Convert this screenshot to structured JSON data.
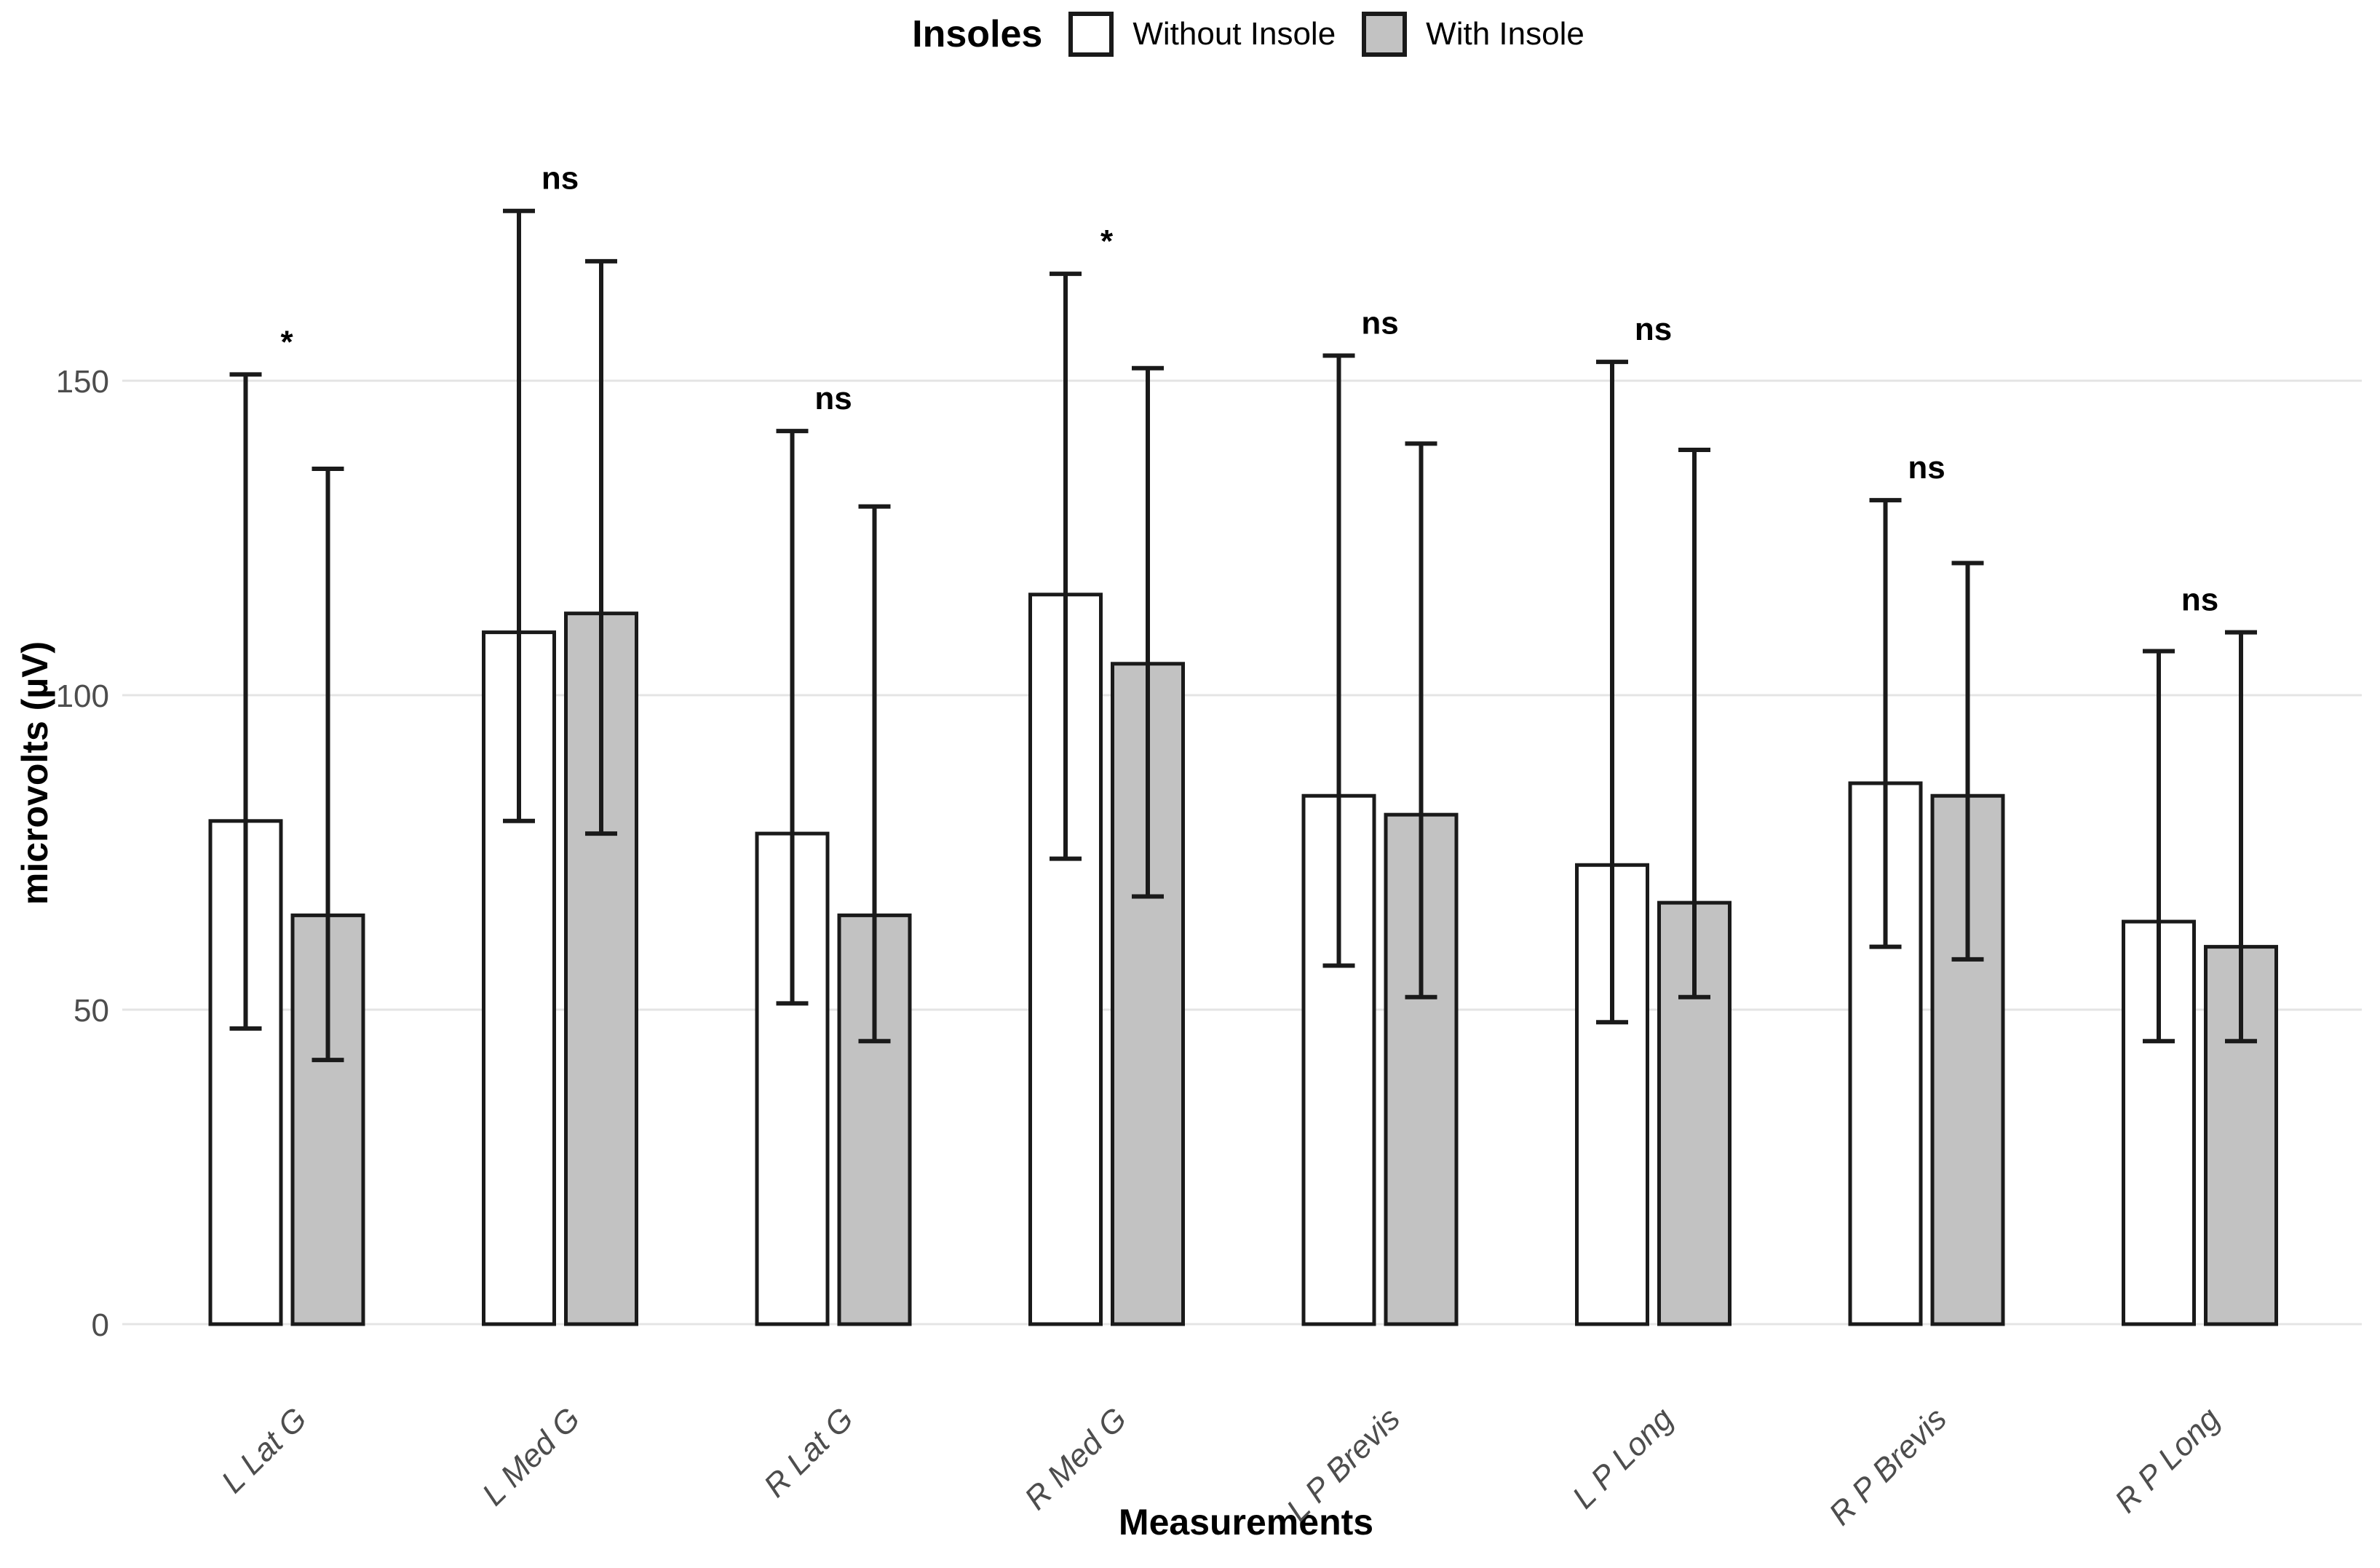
{
  "chart_data": {
    "type": "bar",
    "title": "",
    "xlabel": "Measurements",
    "ylabel": "microvolts (µV)",
    "ylim": [
      0,
      185
    ],
    "yticks": [
      0,
      50,
      100,
      150
    ],
    "grid": "horizontal major gridlines only, no axis lines",
    "legend": {
      "title": "Insoles",
      "position": "top-center",
      "entries": [
        {
          "label": "Without Insole",
          "fill": "#FFFFFF"
        },
        {
          "label": "With Insole",
          "fill": "#C2C2C2"
        }
      ]
    },
    "categories": [
      "L Lat G",
      "L Med G",
      "R Lat G",
      "R Med G",
      "L P Brevis",
      "L P Long",
      "R P Brevis",
      "R P Long"
    ],
    "series": [
      {
        "name": "Without Insole",
        "values": [
          80,
          110,
          78,
          116,
          84,
          73,
          86,
          64
        ],
        "err_low": [
          47,
          80,
          51,
          74,
          57,
          48,
          60,
          45
        ],
        "err_high": [
          151,
          177,
          142,
          167,
          154,
          153,
          131,
          107
        ]
      },
      {
        "name": "With Insole",
        "values": [
          65,
          113,
          65,
          105,
          81,
          67,
          84,
          60
        ],
        "err_low": [
          42,
          78,
          45,
          68,
          52,
          52,
          58,
          45
        ],
        "err_high": [
          136,
          169,
          130,
          152,
          140,
          139,
          121,
          110
        ]
      }
    ],
    "significance": [
      "*",
      "ns",
      "ns",
      "*",
      "ns",
      "ns",
      "ns",
      "ns"
    ],
    "colors": {
      "without_fill": "#FFFFFF",
      "with_fill": "#C2C2C2",
      "bar_stroke": "#1A1A1A",
      "errorbar": "#1A1A1A",
      "gridline": "#E4E4E4",
      "tick_text": "#4D4D4D",
      "title_text": "#000000",
      "background": "#FFFFFF"
    }
  }
}
